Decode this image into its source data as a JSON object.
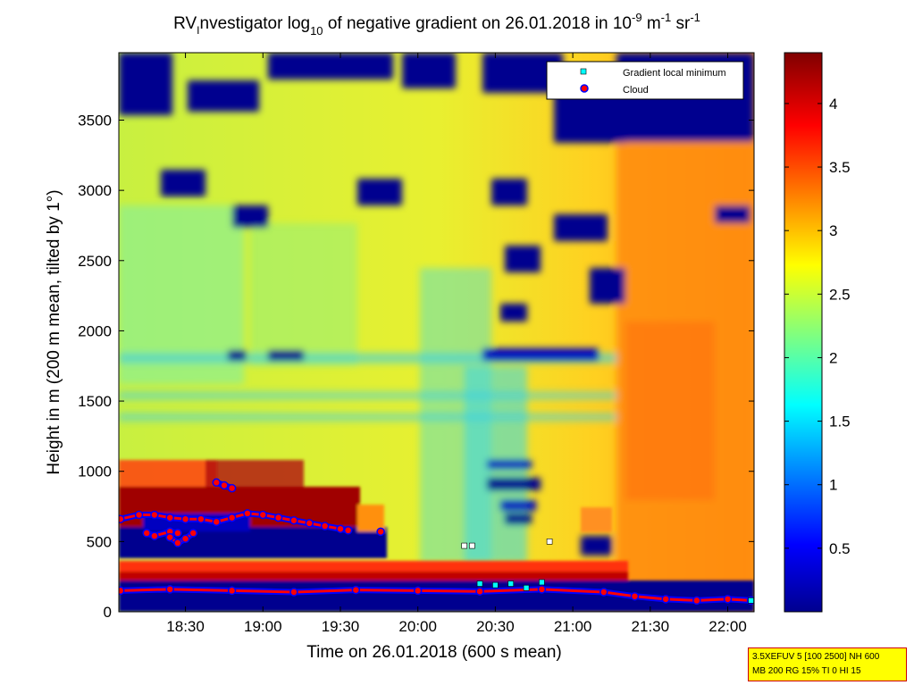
{
  "chart_data": {
    "type": "heatmap",
    "title": {
      "prefix": "RV",
      "prefix_sub": "I",
      "part1": "nvestigator log",
      "log_sub": "10",
      "part2": " of negative gradient on 26.01.2018 in 10",
      "exp1": "-9",
      "part3": " m",
      "exp2": "-1",
      "part4": " sr",
      "exp3": "-1"
    },
    "xlabel": "Time on 26.01.2018 (600 s mean)",
    "ylabel": "Height in m (200 m mean, tilted by 1°)",
    "x_ticks": [
      "18:30",
      "19:00",
      "19:30",
      "20:00",
      "20:30",
      "21:00",
      "21:30",
      "22:00"
    ],
    "x_tick_hours": [
      18.5,
      19.0,
      19.5,
      20.0,
      20.5,
      21.0,
      21.5,
      22.0
    ],
    "xlim_hours": [
      18.07,
      22.17
    ],
    "y_ticks": [
      "0",
      "500",
      "1000",
      "1500",
      "2000",
      "2500",
      "3000",
      "3500"
    ],
    "y_tick_values": [
      0,
      500,
      1000,
      1500,
      2000,
      2500,
      3000,
      3500
    ],
    "ylim": [
      0,
      3980
    ],
    "colorbar": {
      "colormap": "jet",
      "range": [
        0,
        4.4
      ],
      "ticks": [
        "0.5",
        "1",
        "1.5",
        "2",
        "2.5",
        "3",
        "3.5",
        "4"
      ],
      "tick_values": [
        0.5,
        1,
        1.5,
        2,
        2.5,
        3,
        3.5,
        4
      ]
    },
    "legend": {
      "position": "top-right",
      "entries": [
        {
          "label": "Gradient local minimum",
          "marker": "square",
          "color": "#00ffff"
        },
        {
          "label": "Cloud",
          "marker": "circle",
          "color": "#ff0000"
        }
      ]
    },
    "cloud_series": {
      "name": "Cloud",
      "segments": [
        {
          "x": [
            18.08,
            18.2,
            18.3,
            18.4,
            18.5,
            18.6,
            18.7,
            18.8,
            18.9,
            19.0,
            19.1,
            19.2,
            19.3,
            19.4,
            19.5,
            19.55
          ],
          "y": [
            660,
            690,
            690,
            670,
            660,
            660,
            640,
            670,
            700,
            690,
            670,
            650,
            630,
            610,
            590,
            580
          ]
        },
        {
          "x": [
            18.25,
            18.3,
            18.4,
            18.45
          ],
          "y": [
            560,
            540,
            570,
            560
          ]
        },
        {
          "x": [
            18.4,
            18.45,
            18.5,
            18.55
          ],
          "y": [
            530,
            490,
            520,
            560
          ]
        },
        {
          "x": [
            18.7,
            18.75,
            18.8
          ],
          "y": [
            920,
            900,
            880
          ]
        },
        {
          "x": [
            19.76
          ],
          "y": [
            570
          ]
        },
        {
          "x": [
            18.08,
            18.4,
            18.8,
            19.2,
            19.6,
            20.0,
            20.4,
            20.8,
            21.2,
            21.4,
            21.6,
            21.8,
            22.0,
            22.15
          ],
          "y": [
            150,
            160,
            150,
            140,
            155,
            150,
            145,
            160,
            140,
            110,
            90,
            80,
            90,
            80
          ]
        }
      ]
    },
    "minimum_series": {
      "name": "Gradient local minimum",
      "x": [
        20.3,
        20.35,
        20.85,
        20.5,
        20.6,
        20.7,
        20.4,
        20.8,
        22.15
      ],
      "y": [
        470,
        470,
        500,
        190,
        200,
        170,
        200,
        210,
        80
      ]
    },
    "info_box": {
      "line1": "3.5XEFUV 5 [100 2500] NH 600",
      "line2": "MB 200 RG 15% TI 0 HI 15"
    }
  }
}
